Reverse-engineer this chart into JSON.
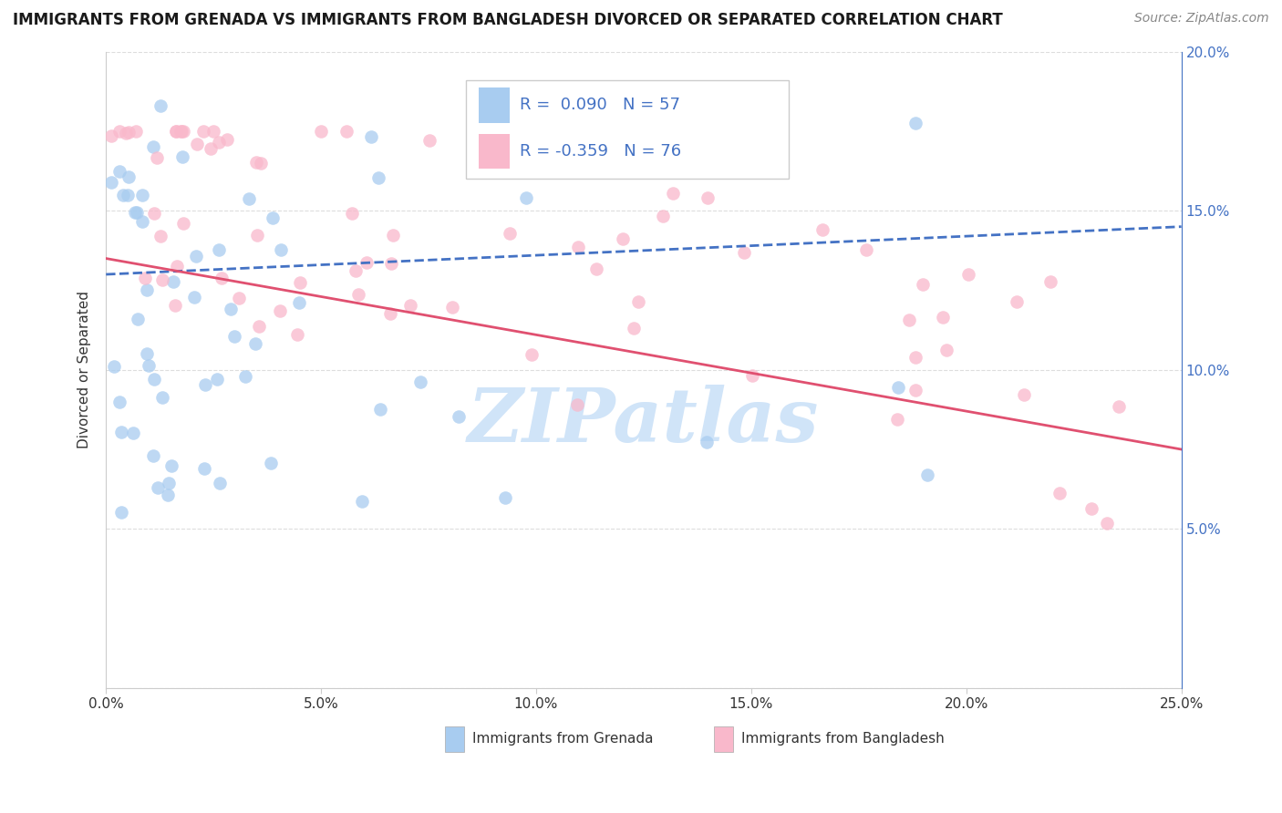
{
  "title": "IMMIGRANTS FROM GRENADA VS IMMIGRANTS FROM BANGLADESH DIVORCED OR SEPARATED CORRELATION CHART",
  "source": "Source: ZipAtlas.com",
  "ylabel": "Divorced or Separated",
  "legend1_label": "Immigrants from Grenada",
  "legend2_label": "Immigrants from Bangladesh",
  "R1": 0.09,
  "N1": 57,
  "R2": -0.359,
  "N2": 76,
  "xlim": [
    0.0,
    0.25
  ],
  "ylim": [
    0.0,
    0.2
  ],
  "color_blue": "#A8CCF0",
  "color_pink": "#F9B8CB",
  "trend_blue": "#4472C4",
  "trend_pink": "#E05070",
  "watermark": "ZIPatlas",
  "watermark_color": "#D0E4F8",
  "text_color_blue": "#4472C4",
  "text_color_dark": "#333333",
  "text_color_gray": "#888888"
}
